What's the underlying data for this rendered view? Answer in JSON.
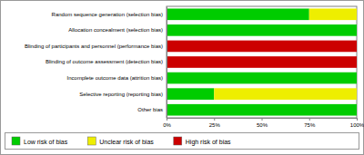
{
  "chart_data": {
    "type": "bar",
    "orientation": "horizontal",
    "stacked": true,
    "grid": false,
    "legend": "bottom",
    "categories": [
      "Random sequence generation (selection bias)",
      "Allocation concealment (selection bias)",
      "Blinding of participants and personnel (performance bias)",
      "Blinding of outcome assessment (detection bias)",
      "Incomplete outcome data (attrition bias)",
      "Selective reporting (reporting bias)",
      "Other bias"
    ],
    "series": [
      {
        "name": "Low risk of bias",
        "color": "#00cc00",
        "values": [
          75,
          100,
          0,
          0,
          100,
          25,
          100
        ]
      },
      {
        "name": "Unclear risk of bias",
        "color": "#eeee00",
        "values": [
          25,
          0,
          0,
          0,
          0,
          75,
          0
        ]
      },
      {
        "name": "High risk of bias",
        "color": "#cc0000",
        "values": [
          0,
          0,
          100,
          100,
          0,
          0,
          0
        ]
      }
    ],
    "xlim": [
      0,
      100
    ],
    "xticks": [
      {
        "value": 0,
        "label": "0%"
      },
      {
        "value": 25,
        "label": "25%"
      },
      {
        "value": 50,
        "label": "50%"
      },
      {
        "value": 75,
        "label": "75%"
      },
      {
        "value": 100,
        "label": "100%"
      }
    ]
  }
}
